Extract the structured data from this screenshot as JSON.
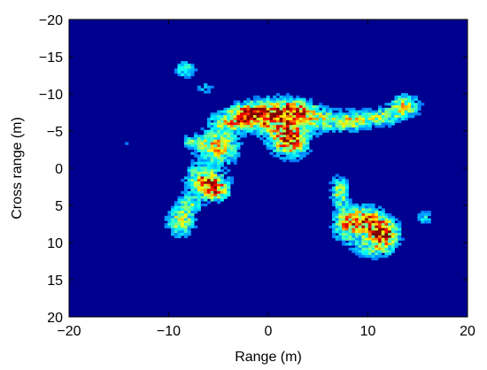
{
  "chart_data": {
    "type": "heatmap",
    "title": "",
    "xlabel": "Range (m)",
    "ylabel": "Cross range (m)",
    "xlim": [
      -20,
      20
    ],
    "ylim": [
      -20,
      20
    ],
    "y_axis_reversed": true,
    "xticks": [
      -20,
      -10,
      0,
      10,
      20
    ],
    "yticks": [
      -20,
      -15,
      -10,
      -5,
      0,
      5,
      10,
      15,
      20
    ],
    "xtick_labels": [
      "−20",
      "−10",
      "0",
      "10",
      "20"
    ],
    "ytick_labels": [
      "−20",
      "−15",
      "−10",
      "−5",
      "0",
      "5",
      "10",
      "15",
      "20"
    ],
    "grid": false,
    "colormap": "jet",
    "background_color": "#00008f",
    "frame_color": "#000000",
    "intensity_range": [
      0,
      1
    ],
    "blobs": [
      {
        "x": 2,
        "y": -4,
        "sx": 1.2,
        "sy": 1.4,
        "peak": 1.0
      },
      {
        "x": 2.5,
        "y": -8,
        "sx": 1.5,
        "sy": 1.0,
        "peak": 0.75
      },
      {
        "x": 0,
        "y": -7,
        "sx": 1.6,
        "sy": 1.5,
        "peak": 0.7
      },
      {
        "x": -2,
        "y": -7.5,
        "sx": 1.2,
        "sy": 1.0,
        "peak": 0.7
      },
      {
        "x": -4,
        "y": -6.5,
        "sx": 1.3,
        "sy": 1.0,
        "peak": 0.55
      },
      {
        "x": -5,
        "y": -3,
        "sx": 1.2,
        "sy": 1.6,
        "peak": 0.65
      },
      {
        "x": -7.5,
        "y": -3.5,
        "sx": 1.0,
        "sy": 0.8,
        "peak": 0.45
      },
      {
        "x": -5.5,
        "y": 2.5,
        "sx": 1.0,
        "sy": 1.1,
        "peak": 0.9
      },
      {
        "x": -7,
        "y": 1,
        "sx": 1.0,
        "sy": 1.2,
        "peak": 0.55
      },
      {
        "x": -9,
        "y": 7,
        "sx": 0.9,
        "sy": 1.3,
        "peak": 0.6
      },
      {
        "x": -8,
        "y": 4.5,
        "sx": 0.8,
        "sy": 1.0,
        "peak": 0.4
      },
      {
        "x": 5,
        "y": -6.5,
        "sx": 1.4,
        "sy": 1.0,
        "peak": 0.45
      },
      {
        "x": 8,
        "y": -6.5,
        "sx": 1.2,
        "sy": 0.9,
        "peak": 0.55
      },
      {
        "x": 11,
        "y": -7,
        "sx": 1.4,
        "sy": 0.8,
        "peak": 0.5
      },
      {
        "x": 13.5,
        "y": -8.5,
        "sx": 1.0,
        "sy": 1.0,
        "peak": 0.6
      },
      {
        "x": 7,
        "y": 3,
        "sx": 0.6,
        "sy": 1.4,
        "peak": 0.55
      },
      {
        "x": 7.5,
        "y": 7.5,
        "sx": 0.8,
        "sy": 1.6,
        "peak": 0.45
      },
      {
        "x": 9.5,
        "y": 7,
        "sx": 1.3,
        "sy": 1.3,
        "peak": 0.85
      },
      {
        "x": 11.5,
        "y": 8.5,
        "sx": 0.9,
        "sy": 1.0,
        "peak": 1.0
      },
      {
        "x": 10.5,
        "y": 10.5,
        "sx": 1.4,
        "sy": 0.9,
        "peak": 0.5
      },
      {
        "x": 15.5,
        "y": 6.5,
        "sx": 0.5,
        "sy": 0.8,
        "peak": 0.3
      },
      {
        "x": -8.5,
        "y": -13.5,
        "sx": 0.7,
        "sy": 0.8,
        "peak": 0.4
      },
      {
        "x": -6.5,
        "y": -11,
        "sx": 0.6,
        "sy": 0.6,
        "peak": 0.25
      },
      {
        "x": -14.5,
        "y": -3.5,
        "sx": 0.6,
        "sy": 1.2,
        "peak": 0.12
      }
    ]
  }
}
